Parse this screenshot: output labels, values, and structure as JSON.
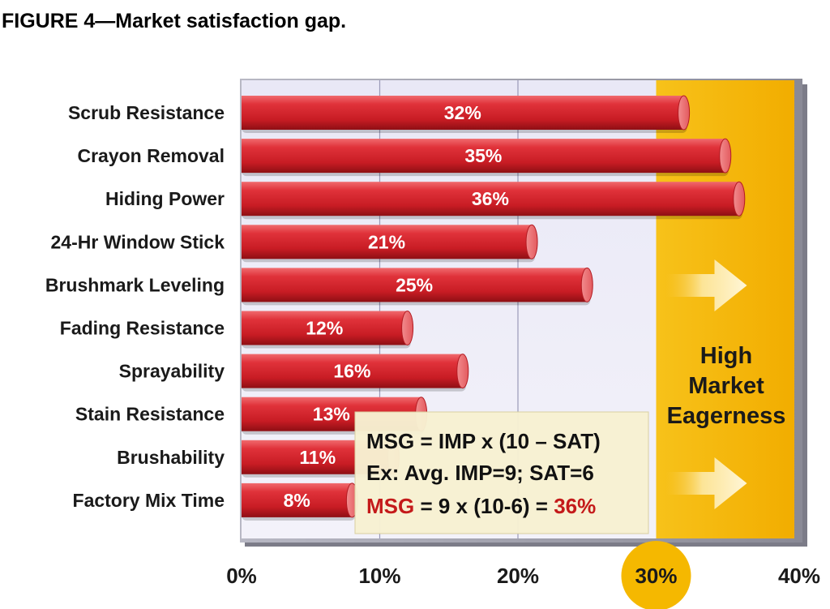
{
  "figure": {
    "title": "FIGURE 4—Market satisfaction gap."
  },
  "zone": {
    "line1": "High",
    "line2": "Market",
    "line3": "Eagerness",
    "color": "#f5b800"
  },
  "formula": {
    "line1": "MSG = IMP x (10 – SAT)",
    "line2": "Ex: Avg. IMP=9;  SAT=6",
    "line3_a": "MSG",
    "line3_b": " = 9 x (10-6) = ",
    "line3_c": "36%",
    "highlight_color": "#c41a1a"
  },
  "chart_data": {
    "type": "bar",
    "orientation": "horizontal",
    "title": "FIGURE 4—Market satisfaction gap.",
    "xlabel": "",
    "ylabel": "",
    "categories": [
      "Scrub Resistance",
      "Crayon Removal",
      "Hiding Power",
      "24-Hr Window Stick",
      "Brushmark Leveling",
      "Fading Resistance",
      "Sprayability",
      "Stain Resistance",
      "Brushability",
      "Factory Mix Time"
    ],
    "values": [
      32,
      35,
      36,
      21,
      25,
      12,
      16,
      13,
      11,
      8
    ],
    "value_labels": [
      "32%",
      "35%",
      "36%",
      "21%",
      "25%",
      "12%",
      "16%",
      "13%",
      "11%",
      "8%"
    ],
    "xlim": [
      0,
      40
    ],
    "ticks": [
      0,
      10,
      20,
      30,
      40
    ],
    "tick_labels": [
      "0%",
      "10%",
      "20%",
      "30%",
      "40%"
    ],
    "highlighted_tick": "30%",
    "high_zone_start": 30,
    "bar_color": "#d8262c",
    "grid": true
  }
}
